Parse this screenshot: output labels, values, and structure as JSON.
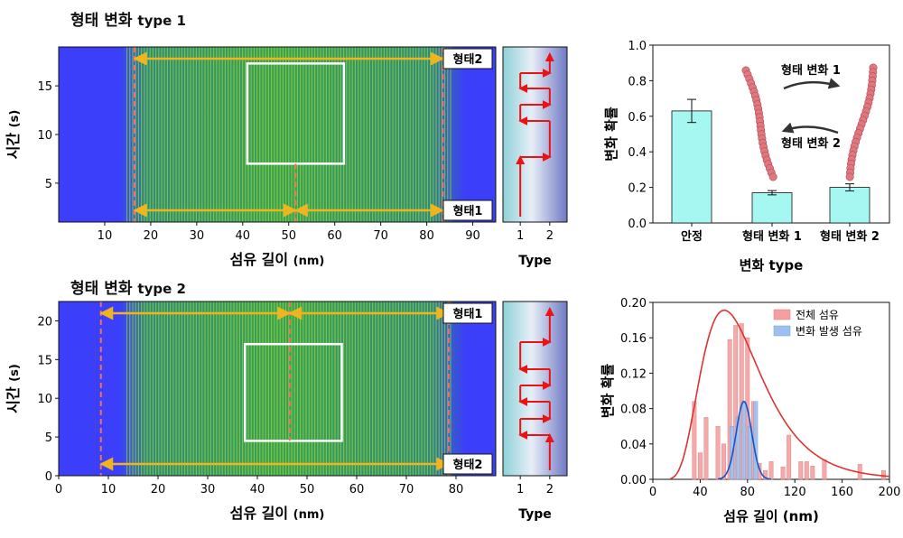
{
  "colors": {
    "kymo_bg": "#3b3dfa",
    "kymo_stripe": "#2fa85a",
    "kymo_bright": "#b8ef3a",
    "arrow_yellow": "#f0b41e",
    "dash_red": "#f0735a",
    "box_white": "#ffffff",
    "type_red": "#ee1111",
    "bar_fill": "#a6f7f2",
    "hist_red": "#f4a0a0",
    "hist_blue": "#9cc0f0",
    "curve_red": "#dd3333",
    "curve_blue": "#1155cc",
    "fiber": "#e07880"
  },
  "panel_a": {
    "title_main": "형태 변화",
    "title_sub": "type 1",
    "xlabel_main": "섬유 길이",
    "xlabel_unit": "(nm)",
    "ylabel_main": "시간",
    "ylabel_unit": "(s)",
    "xticks": [
      10,
      20,
      30,
      40,
      50,
      60,
      70,
      80,
      90
    ],
    "yticks": [
      5,
      10,
      15
    ],
    "xlim": [
      0,
      95
    ],
    "ylim": [
      1,
      19
    ],
    "label_top": "형태2",
    "label_bottom": "형태1",
    "dash_positions": [
      16.5,
      51.5,
      83.5
    ],
    "type_label": "Type",
    "type_ticks": [
      "1",
      "2"
    ],
    "type_path": [
      1,
      1,
      2,
      2,
      1,
      1,
      2,
      2,
      1,
      1,
      2,
      2,
      1,
      1
    ]
  },
  "panel_b": {
    "title_main": "형태 변화",
    "title_sub": "type 2",
    "xlabel_main": "섬유 길이",
    "xlabel_unit": "(nm)",
    "ylabel_main": "시간",
    "ylabel_unit": "(s)",
    "xticks": [
      0,
      10,
      20,
      30,
      40,
      50,
      60,
      70,
      80
    ],
    "yticks": [
      0,
      5,
      10,
      15,
      20
    ],
    "xlim": [
      0,
      88
    ],
    "ylim": [
      0,
      22.5
    ],
    "label_top": "형태1",
    "label_bottom": "형태2",
    "dash_positions": [
      8.5,
      46.5,
      78.5
    ],
    "type_label": "Type",
    "type_ticks": [
      "1",
      "2"
    ]
  },
  "chart_data": [
    {
      "type": "bar",
      "categories": [
        "안정",
        "형태 변화 1",
        "형태 변화 2"
      ],
      "values": [
        0.63,
        0.17,
        0.2
      ],
      "errors": [
        0.065,
        0.012,
        0.02
      ],
      "xlabel": "변화 type",
      "ylabel": "변화 확률",
      "ylim": [
        0,
        1.0
      ],
      "yticks": [
        "0.0",
        "0.2",
        "0.4",
        "0.6",
        "0.8",
        "1.0"
      ],
      "annotation_top": "형태 변화 1",
      "annotation_bottom": "형태 변화 2"
    },
    {
      "type": "bar",
      "x": [
        35,
        40,
        45,
        55,
        60,
        65,
        70,
        75,
        80,
        85,
        90,
        95,
        100,
        110,
        115,
        125,
        130,
        135,
        145,
        175,
        195
      ],
      "series": [
        {
          "name": "전체 섬유",
          "values": [
            0.088,
            0.03,
            0.07,
            0.06,
            0.04,
            0.158,
            0.174,
            0.176,
            0.16,
            0.088,
            0.018,
            0.01,
            0.02,
            0.014,
            0.05,
            0.02,
            0.02,
            0.015,
            0.022,
            0.017,
            0.01
          ]
        },
        {
          "name": "변화 발생 섬유",
          "values": [
            0,
            0,
            0,
            0,
            0,
            0.06,
            0.07,
            0.088,
            0.06,
            0.088,
            0,
            0,
            0,
            0,
            0,
            0,
            0,
            0,
            0,
            0,
            0
          ]
        }
      ],
      "xlabel": "섬유 길이 (nm)",
      "ylabel": "변화 확률",
      "xlim": [
        0,
        200
      ],
      "ylim": [
        0,
        0.2
      ],
      "xticks": [
        0,
        40,
        80,
        120,
        160,
        200
      ],
      "yticks": [
        "0.00",
        "0.04",
        "0.08",
        "0.12",
        "0.16",
        "0.20"
      ],
      "legend": "top-right"
    }
  ]
}
